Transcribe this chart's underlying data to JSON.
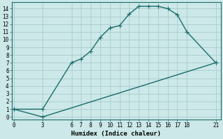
{
  "xlabel": "Humidex (Indice chaleur)",
  "bg_color": "#cce8e8",
  "line_color": "#1a6b6b",
  "grid_color": "#aacccc",
  "xticks": [
    0,
    3,
    6,
    7,
    8,
    9,
    10,
    11,
    12,
    13,
    14,
    15,
    16,
    17,
    18,
    21
  ],
  "yticks": [
    0,
    1,
    2,
    3,
    4,
    5,
    6,
    7,
    8,
    9,
    10,
    11,
    12,
    13,
    14
  ],
  "xlim": [
    -0.2,
    21.5
  ],
  "ylim": [
    -0.3,
    14.8
  ],
  "line1_x": [
    0,
    3,
    6,
    7,
    8,
    9,
    10,
    11,
    12,
    13,
    14,
    15,
    16,
    17,
    18,
    21
  ],
  "line1_y": [
    1.0,
    1.0,
    7.0,
    7.5,
    8.5,
    10.3,
    11.5,
    11.8,
    13.3,
    14.3,
    14.3,
    14.3,
    14.0,
    13.2,
    11.0,
    7.0
  ],
  "line2_x": [
    0,
    3,
    21
  ],
  "line2_y": [
    1.0,
    0.0,
    7.0
  ],
  "marker": "+",
  "marker_size": 4,
  "line_width": 1.0,
  "tick_fontsize": 5.5,
  "xlabel_fontsize": 6.5
}
